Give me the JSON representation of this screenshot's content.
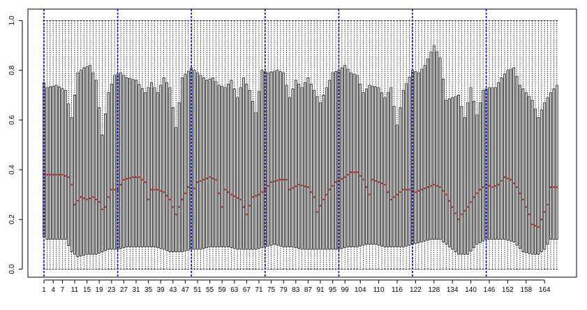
{
  "chart_data": {
    "type": "boxplot",
    "n": 168,
    "ylim": [
      0,
      1
    ],
    "yticks": [
      "0.0",
      "0.2",
      "0.4",
      "0.6",
      "0.8",
      "1.0"
    ],
    "xtick_labels": [
      "1",
      "4",
      "7",
      "11",
      "15",
      "19",
      "23",
      "27",
      "31",
      "35",
      "39",
      "43",
      "47",
      "51",
      "55",
      "59",
      "63",
      "67",
      "71",
      "75",
      "79",
      "83",
      "87",
      "91",
      "95",
      "99",
      "104",
      "110",
      "116",
      "122",
      "128",
      "134",
      "140",
      "146",
      "152",
      "158",
      "164"
    ],
    "xtick_positions": [
      1,
      4,
      7,
      11,
      15,
      19,
      23,
      27,
      31,
      35,
      39,
      43,
      47,
      51,
      55,
      59,
      63,
      67,
      71,
      75,
      79,
      83,
      87,
      91,
      95,
      99,
      104,
      110,
      116,
      122,
      128,
      134,
      140,
      146,
      152,
      158,
      164
    ],
    "vlines": [
      1,
      25,
      49,
      73,
      97,
      121,
      145
    ],
    "whisker_low": 0,
    "whisker_high": 1,
    "box_q3_keypoints": [
      [
        1,
        0.75
      ],
      [
        2,
        0.73
      ],
      [
        5,
        0.74
      ],
      [
        8,
        0.72
      ],
      [
        10,
        0.61
      ],
      [
        12,
        0.79
      ],
      [
        14,
        0.81
      ],
      [
        16,
        0.82
      ],
      [
        18,
        0.76
      ],
      [
        20,
        0.54
      ],
      [
        22,
        0.71
      ],
      [
        24,
        0.78
      ],
      [
        26,
        0.79
      ],
      [
        28,
        0.77
      ],
      [
        31,
        0.76
      ],
      [
        34,
        0.71
      ],
      [
        36,
        0.75
      ],
      [
        38,
        0.71
      ],
      [
        40,
        0.77
      ],
      [
        42,
        0.73
      ],
      [
        44,
        0.57
      ],
      [
        46,
        0.77
      ],
      [
        49,
        0.81
      ],
      [
        52,
        0.78
      ],
      [
        54,
        0.76
      ],
      [
        56,
        0.77
      ],
      [
        58,
        0.74
      ],
      [
        60,
        0.73
      ],
      [
        62,
        0.76
      ],
      [
        64,
        0.69
      ],
      [
        66,
        0.77
      ],
      [
        68,
        0.72
      ],
      [
        70,
        0.63
      ],
      [
        72,
        0.8
      ],
      [
        74,
        0.79
      ],
      [
        77,
        0.8
      ],
      [
        79,
        0.79
      ],
      [
        81,
        0.69
      ],
      [
        83,
        0.76
      ],
      [
        85,
        0.73
      ],
      [
        87,
        0.77
      ],
      [
        89,
        0.72
      ],
      [
        91,
        0.67
      ],
      [
        93,
        0.73
      ],
      [
        95,
        0.79
      ],
      [
        97,
        0.8
      ],
      [
        99,
        0.82
      ],
      [
        101,
        0.79
      ],
      [
        103,
        0.78
      ],
      [
        105,
        0.71
      ],
      [
        107,
        0.74
      ],
      [
        110,
        0.73
      ],
      [
        112,
        0.69
      ],
      [
        114,
        0.73
      ],
      [
        116,
        0.58
      ],
      [
        118,
        0.72
      ],
      [
        121,
        0.8
      ],
      [
        123,
        0.79
      ],
      [
        125,
        0.82
      ],
      [
        128,
        0.9
      ],
      [
        130,
        0.85
      ],
      [
        132,
        0.68
      ],
      [
        134,
        0.69
      ],
      [
        136,
        0.7
      ],
      [
        138,
        0.61
      ],
      [
        140,
        0.73
      ],
      [
        142,
        0.62
      ],
      [
        144,
        0.72
      ],
      [
        146,
        0.73
      ],
      [
        148,
        0.73
      ],
      [
        150,
        0.77
      ],
      [
        152,
        0.8
      ],
      [
        154,
        0.81
      ],
      [
        156,
        0.74
      ],
      [
        158,
        0.71
      ],
      [
        160,
        0.68
      ],
      [
        162,
        0.61
      ],
      [
        164,
        0.67
      ],
      [
        166,
        0.71
      ],
      [
        168,
        0.74
      ]
    ],
    "box_q1_keypoints": [
      [
        1,
        0.13
      ],
      [
        2,
        0.12
      ],
      [
        6,
        0.12
      ],
      [
        8,
        0.12
      ],
      [
        10,
        0.07
      ],
      [
        12,
        0.05
      ],
      [
        15,
        0.06
      ],
      [
        18,
        0.06
      ],
      [
        20,
        0.07
      ],
      [
        22,
        0.08
      ],
      [
        25,
        0.08
      ],
      [
        28,
        0.09
      ],
      [
        31,
        0.09
      ],
      [
        34,
        0.09
      ],
      [
        37,
        0.09
      ],
      [
        40,
        0.08
      ],
      [
        42,
        0.07
      ],
      [
        44,
        0.07
      ],
      [
        46,
        0.07
      ],
      [
        49,
        0.08
      ],
      [
        52,
        0.08
      ],
      [
        55,
        0.09
      ],
      [
        58,
        0.09
      ],
      [
        61,
        0.09
      ],
      [
        64,
        0.08
      ],
      [
        67,
        0.08
      ],
      [
        70,
        0.08
      ],
      [
        73,
        0.09
      ],
      [
        76,
        0.1
      ],
      [
        79,
        0.09
      ],
      [
        82,
        0.09
      ],
      [
        85,
        0.08
      ],
      [
        88,
        0.08
      ],
      [
        91,
        0.08
      ],
      [
        94,
        0.08
      ],
      [
        97,
        0.08
      ],
      [
        100,
        0.09
      ],
      [
        103,
        0.09
      ],
      [
        106,
        0.1
      ],
      [
        109,
        0.1
      ],
      [
        112,
        0.09
      ],
      [
        115,
        0.09
      ],
      [
        118,
        0.09
      ],
      [
        121,
        0.1
      ],
      [
        124,
        0.11
      ],
      [
        127,
        0.12
      ],
      [
        130,
        0.12
      ],
      [
        133,
        0.09
      ],
      [
        136,
        0.06
      ],
      [
        139,
        0.06
      ],
      [
        142,
        0.1
      ],
      [
        145,
        0.12
      ],
      [
        148,
        0.12
      ],
      [
        151,
        0.12
      ],
      [
        154,
        0.11
      ],
      [
        157,
        0.07
      ],
      [
        160,
        0.06
      ],
      [
        162,
        0.06
      ],
      [
        164,
        0.08
      ],
      [
        166,
        0.12
      ],
      [
        168,
        0.12
      ]
    ],
    "median_keypoints": [
      [
        1,
        0.38
      ],
      [
        4,
        0.38
      ],
      [
        7,
        0.38
      ],
      [
        9,
        0.37
      ],
      [
        10,
        0.34
      ],
      [
        11,
        0.26
      ],
      [
        13,
        0.29
      ],
      [
        15,
        0.28
      ],
      [
        17,
        0.29
      ],
      [
        19,
        0.27
      ],
      [
        20,
        0.24
      ],
      [
        21,
        0.25
      ],
      [
        22,
        0.29
      ],
      [
        23,
        0.32
      ],
      [
        25,
        0.32
      ],
      [
        27,
        0.36
      ],
      [
        30,
        0.37
      ],
      [
        32,
        0.37
      ],
      [
        34,
        0.35
      ],
      [
        35,
        0.28
      ],
      [
        36,
        0.32
      ],
      [
        38,
        0.32
      ],
      [
        40,
        0.31
      ],
      [
        42,
        0.28
      ],
      [
        44,
        0.22
      ],
      [
        46,
        0.28
      ],
      [
        48,
        0.33
      ],
      [
        49,
        0.3
      ],
      [
        51,
        0.35
      ],
      [
        55,
        0.37
      ],
      [
        57,
        0.36
      ],
      [
        59,
        0.25
      ],
      [
        60,
        0.32
      ],
      [
        62,
        0.3
      ],
      [
        65,
        0.28
      ],
      [
        67,
        0.22
      ],
      [
        69,
        0.29
      ],
      [
        71,
        0.3
      ],
      [
        73,
        0.32
      ],
      [
        75,
        0.35
      ],
      [
        78,
        0.36
      ],
      [
        80,
        0.36
      ],
      [
        81,
        0.32
      ],
      [
        84,
        0.34
      ],
      [
        87,
        0.33
      ],
      [
        89,
        0.29
      ],
      [
        90,
        0.23
      ],
      [
        92,
        0.28
      ],
      [
        94,
        0.32
      ],
      [
        96,
        0.35
      ],
      [
        99,
        0.37
      ],
      [
        101,
        0.39
      ],
      [
        103,
        0.39
      ],
      [
        105,
        0.36
      ],
      [
        107,
        0.3
      ],
      [
        108,
        0.36
      ],
      [
        110,
        0.35
      ],
      [
        112,
        0.34
      ],
      [
        114,
        0.28
      ],
      [
        116,
        0.3
      ],
      [
        118,
        0.32
      ],
      [
        120,
        0.32
      ],
      [
        122,
        0.31
      ],
      [
        124,
        0.32
      ],
      [
        126,
        0.33
      ],
      [
        128,
        0.34
      ],
      [
        130,
        0.33
      ],
      [
        132,
        0.3
      ],
      [
        134,
        0.25
      ],
      [
        136,
        0.2
      ],
      [
        137,
        0.22
      ],
      [
        139,
        0.25
      ],
      [
        141,
        0.29
      ],
      [
        143,
        0.32
      ],
      [
        145,
        0.34
      ],
      [
        147,
        0.33
      ],
      [
        149,
        0.34
      ],
      [
        151,
        0.37
      ],
      [
        153,
        0.36
      ],
      [
        155,
        0.33
      ],
      [
        157,
        0.28
      ],
      [
        159,
        0.22
      ],
      [
        160,
        0.18
      ],
      [
        162,
        0.17
      ],
      [
        163,
        0.2
      ],
      [
        165,
        0.26
      ],
      [
        166,
        0.33
      ],
      [
        168,
        0.33
      ]
    ],
    "colors": {
      "box_fill": "#bebebe",
      "box_border": "#1a1a1a",
      "median": "#a52a2a",
      "whisker": "#000000",
      "vline": "#0000cc",
      "axis": "#000000"
    }
  }
}
